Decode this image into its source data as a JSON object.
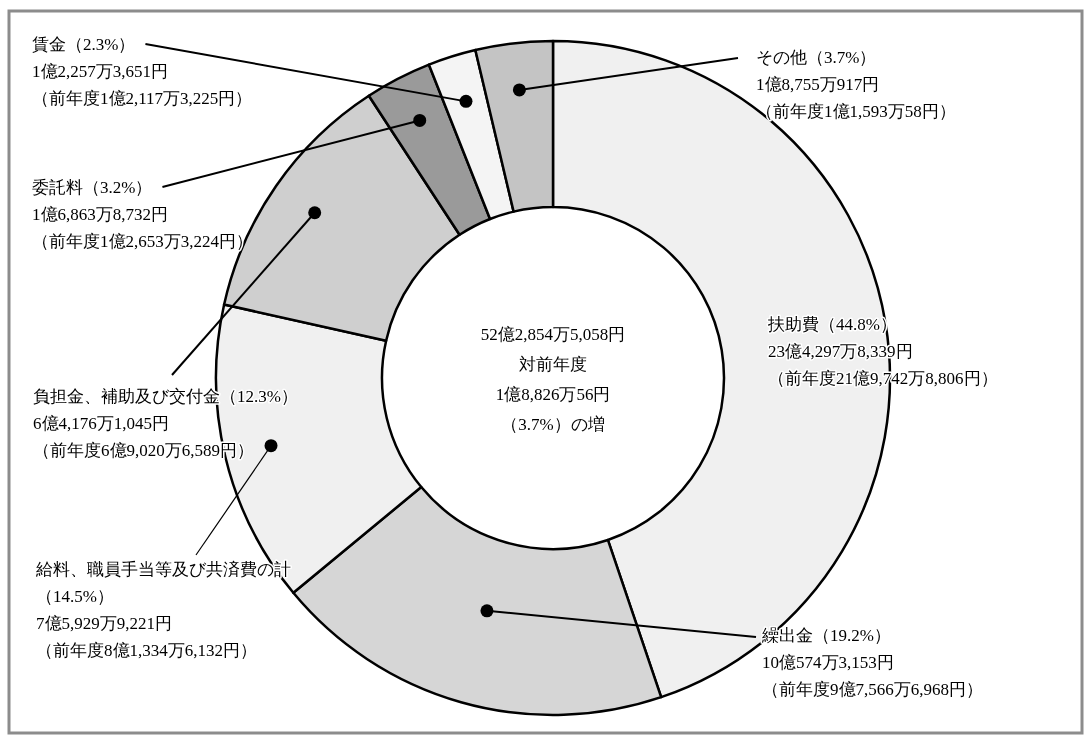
{
  "chart_data": {
    "type": "donut",
    "categories": [
      "扶助費",
      "繰出金",
      "給料、職員手当等及び共済費の計",
      "負担金、補助及び交付金",
      "委託料",
      "賃金",
      "その他"
    ],
    "values": [
      44.8,
      19.2,
      14.5,
      12.3,
      3.2,
      2.3,
      3.7
    ],
    "value_labels": [
      "（44.8%）",
      "（19.2%）",
      "（14.5%）",
      "（12.3%）",
      "（3.2%）",
      "（2.3%）",
      "（3.7%）"
    ],
    "colors": [
      "#f0f0f0",
      "#d6d6d6",
      "#f0f0f0",
      "#cfcfcf",
      "#9a9a9a",
      "#f4f4f4",
      "#c4c4c4"
    ],
    "annotations": [
      "23億4,297万8,339円",
      "（前年度21億9,742万8,806円）",
      "10億574万3,153円",
      "（前年度9億7,566万6,968円）",
      "7億5,929万9,221円",
      "（前年度8億1,334万6,132円）",
      "6億4,176万1,045円",
      "（前年度6億9,020万6,589円）",
      "1億6,863万8,732円",
      "（前年度1億2,653万3,224円）",
      "1億2,257万3,651円",
      "（前年度1億2,117万3,225円）",
      "1億8,755万917円",
      "（前年度1億1,593万58円）",
      "52億2,854万5,058円",
      "対前年度",
      "1億8,826万56円",
      "（3.7%）の増"
    ]
  }
}
